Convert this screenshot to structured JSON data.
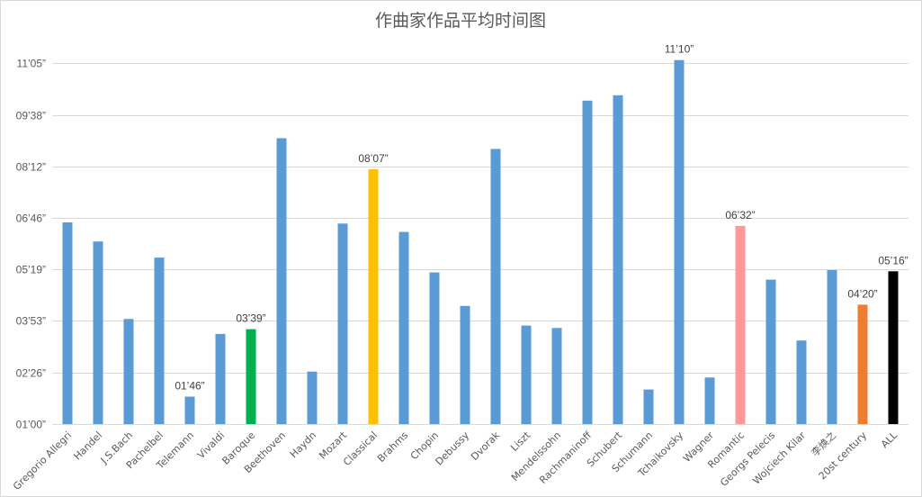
{
  "chart_data": {
    "type": "bar",
    "title": "作曲家作品平均时间图",
    "xlabel": "",
    "ylabel": "",
    "y_unit": "seconds",
    "ylim": [
      60,
      665
    ],
    "yticks": [
      {
        "value": 60,
        "label": "01’00”"
      },
      {
        "value": 146,
        "label": "02’26”"
      },
      {
        "value": 233,
        "label": "03’53”"
      },
      {
        "value": 319,
        "label": "05’19”"
      },
      {
        "value": 406,
        "label": "06’46”"
      },
      {
        "value": 492,
        "label": "08’12”"
      },
      {
        "value": 578,
        "label": "09’38”"
      },
      {
        "value": 665,
        "label": "11’05”"
      }
    ],
    "grid": true,
    "legend": "none",
    "categories": [
      "Gregorio Allegri",
      "Handel",
      "J.S.Bach",
      "Pachelbel",
      "Telemann",
      "Vivaldi",
      "Baroque",
      "Beethoven",
      "Haydn",
      "Mozart",
      "Classical",
      "Brahms",
      "Chopin",
      "Debussy",
      "Dvorak",
      "Liszt",
      "Mendelssohn",
      "Rachmaninoff",
      "Schubert",
      "Schumann",
      "Tchaikovsky",
      "Wagner",
      "Romantic",
      "Georgs Pelecis",
      "Wojciech Kilar",
      "李焕之",
      "20st century",
      "ALL"
    ],
    "values": [
      398,
      366,
      236,
      339,
      106,
      211,
      219,
      539,
      148,
      396,
      487,
      382,
      314,
      258,
      521,
      225,
      221,
      602,
      611,
      118,
      670,
      138,
      392,
      302,
      200,
      318,
      260,
      316
    ],
    "colors": [
      "#5b9bd5",
      "#5b9bd5",
      "#5b9bd5",
      "#5b9bd5",
      "#5b9bd5",
      "#5b9bd5",
      "#00b050",
      "#5b9bd5",
      "#5b9bd5",
      "#5b9bd5",
      "#ffc000",
      "#5b9bd5",
      "#5b9bd5",
      "#5b9bd5",
      "#5b9bd5",
      "#5b9bd5",
      "#5b9bd5",
      "#5b9bd5",
      "#5b9bd5",
      "#5b9bd5",
      "#5b9bd5",
      "#5b9bd5",
      "#ff9999",
      "#5b9bd5",
      "#5b9bd5",
      "#5b9bd5",
      "#ed7d31",
      "#000000"
    ],
    "data_labels": [
      "",
      "",
      "",
      "",
      "01’46”",
      "",
      "03’39”",
      "",
      "",
      "",
      "08’07”",
      "",
      "",
      "",
      "",
      "",
      "",
      "",
      "",
      "",
      "11’10”",
      "",
      "06’32”",
      "",
      "",
      "",
      "04’20”",
      "05’16”"
    ]
  }
}
